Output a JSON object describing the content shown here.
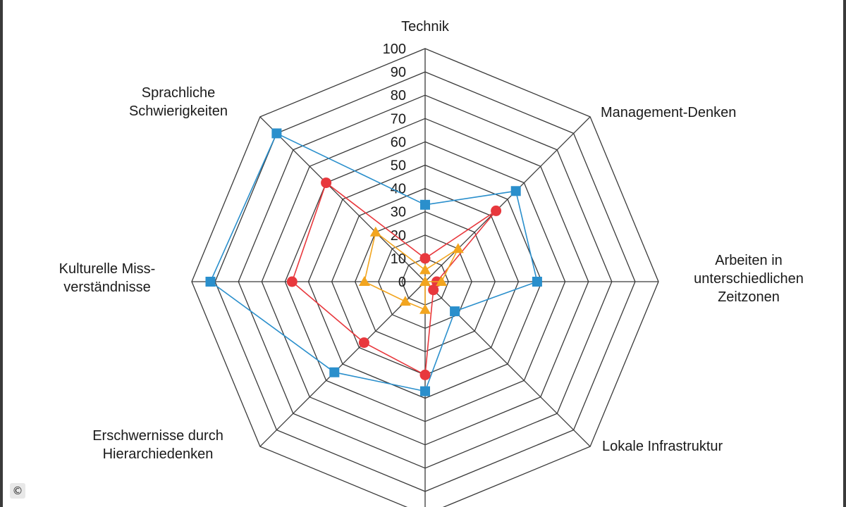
{
  "chart_data": {
    "type": "radar",
    "axes": [
      "Technik",
      "Management-Denken",
      "Arbeiten in unterschiedlichen Zeitzonen",
      "Lokale Infrastruktur",
      "",
      "Erschwernisse durch Hierarchiedenken",
      "Kulturelle Miss-verständnisse",
      "Sprachliche Schwierigkeiten"
    ],
    "axis_label_lines": [
      [
        "Technik"
      ],
      [
        "Management-Denken"
      ],
      [
        "Arbeiten in",
        "unterschiedlichen",
        "Zeitzonen"
      ],
      [
        "Lokale Infrastruktur"
      ],
      [],
      [
        "Erschwernisse durch",
        "Hierarchiedenken"
      ],
      [
        "Kulturelle Miss-",
        "verständnisse"
      ],
      [
        "Sprachliche",
        "Schwierigkeiten"
      ]
    ],
    "ticks": [
      0,
      10,
      20,
      30,
      40,
      50,
      60,
      70,
      80,
      90,
      100
    ],
    "rmax": 100,
    "grid": true,
    "series": [
      {
        "color": "#2a8fcc",
        "marker": "square",
        "values": [
          33,
          55,
          48,
          18,
          47,
          55,
          92,
          90
        ]
      },
      {
        "color": "#e8383d",
        "marker": "circle",
        "values": [
          10,
          43,
          5,
          5,
          40,
          37,
          57,
          60
        ]
      },
      {
        "color": "#f2a51f",
        "marker": "triangle",
        "values": [
          5,
          20,
          7,
          0,
          12,
          12,
          26,
          30
        ]
      }
    ]
  },
  "copyright_symbol": "©"
}
